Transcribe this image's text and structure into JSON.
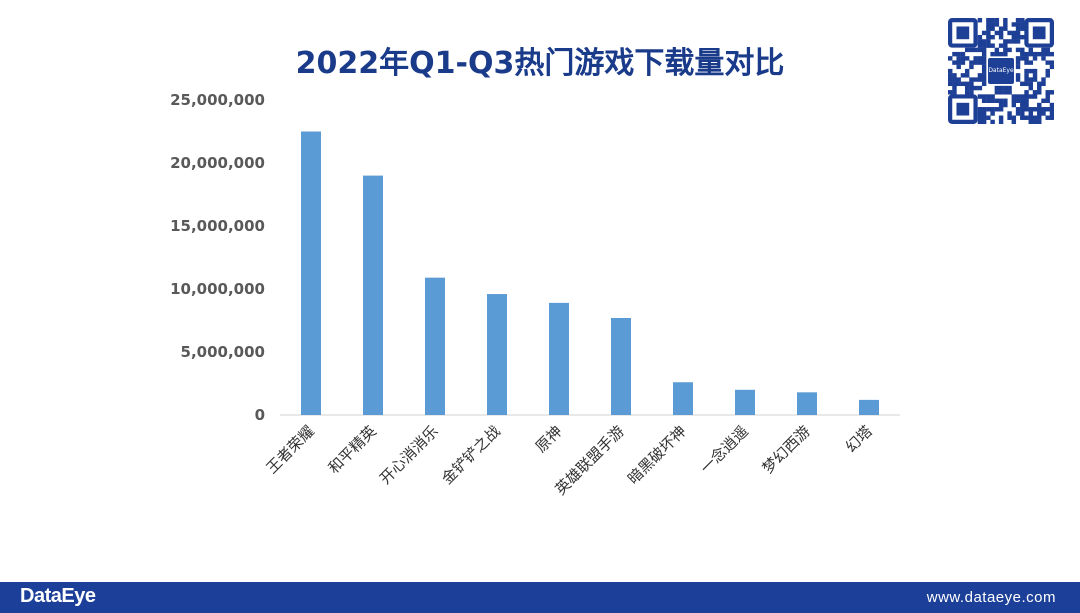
{
  "header": {
    "title": "2022年Q1-Q3热门游戏下载量对比"
  },
  "footer": {
    "logo": "DataEye",
    "url": "www.dataeye.com"
  },
  "qr": {
    "center_label": "DataEye"
  },
  "colors": {
    "bar": "#5b9bd5",
    "title": "#1a3a8a",
    "footer": "#1c3f99"
  },
  "chart_data": {
    "type": "bar",
    "categories": [
      "王者荣耀",
      "和平精英",
      "开心消消乐",
      "金铲铲之战",
      "原神",
      "英雄联盟手游",
      "暗黑破坏神",
      "一念逍遥",
      "梦幻西游",
      "幻塔"
    ],
    "values": [
      22500000,
      19000000,
      10900000,
      9600000,
      8900000,
      7700000,
      2600000,
      2000000,
      1800000,
      1200000
    ],
    "ylim": [
      0,
      25000000
    ],
    "yticks": [
      0,
      5000000,
      10000000,
      15000000,
      20000000,
      25000000
    ],
    "ytick_labels": [
      "0",
      "5,000,000",
      "10,000,000",
      "15,000,000",
      "20,000,000",
      "25,000,000"
    ],
    "grid": false,
    "legend": "none"
  }
}
